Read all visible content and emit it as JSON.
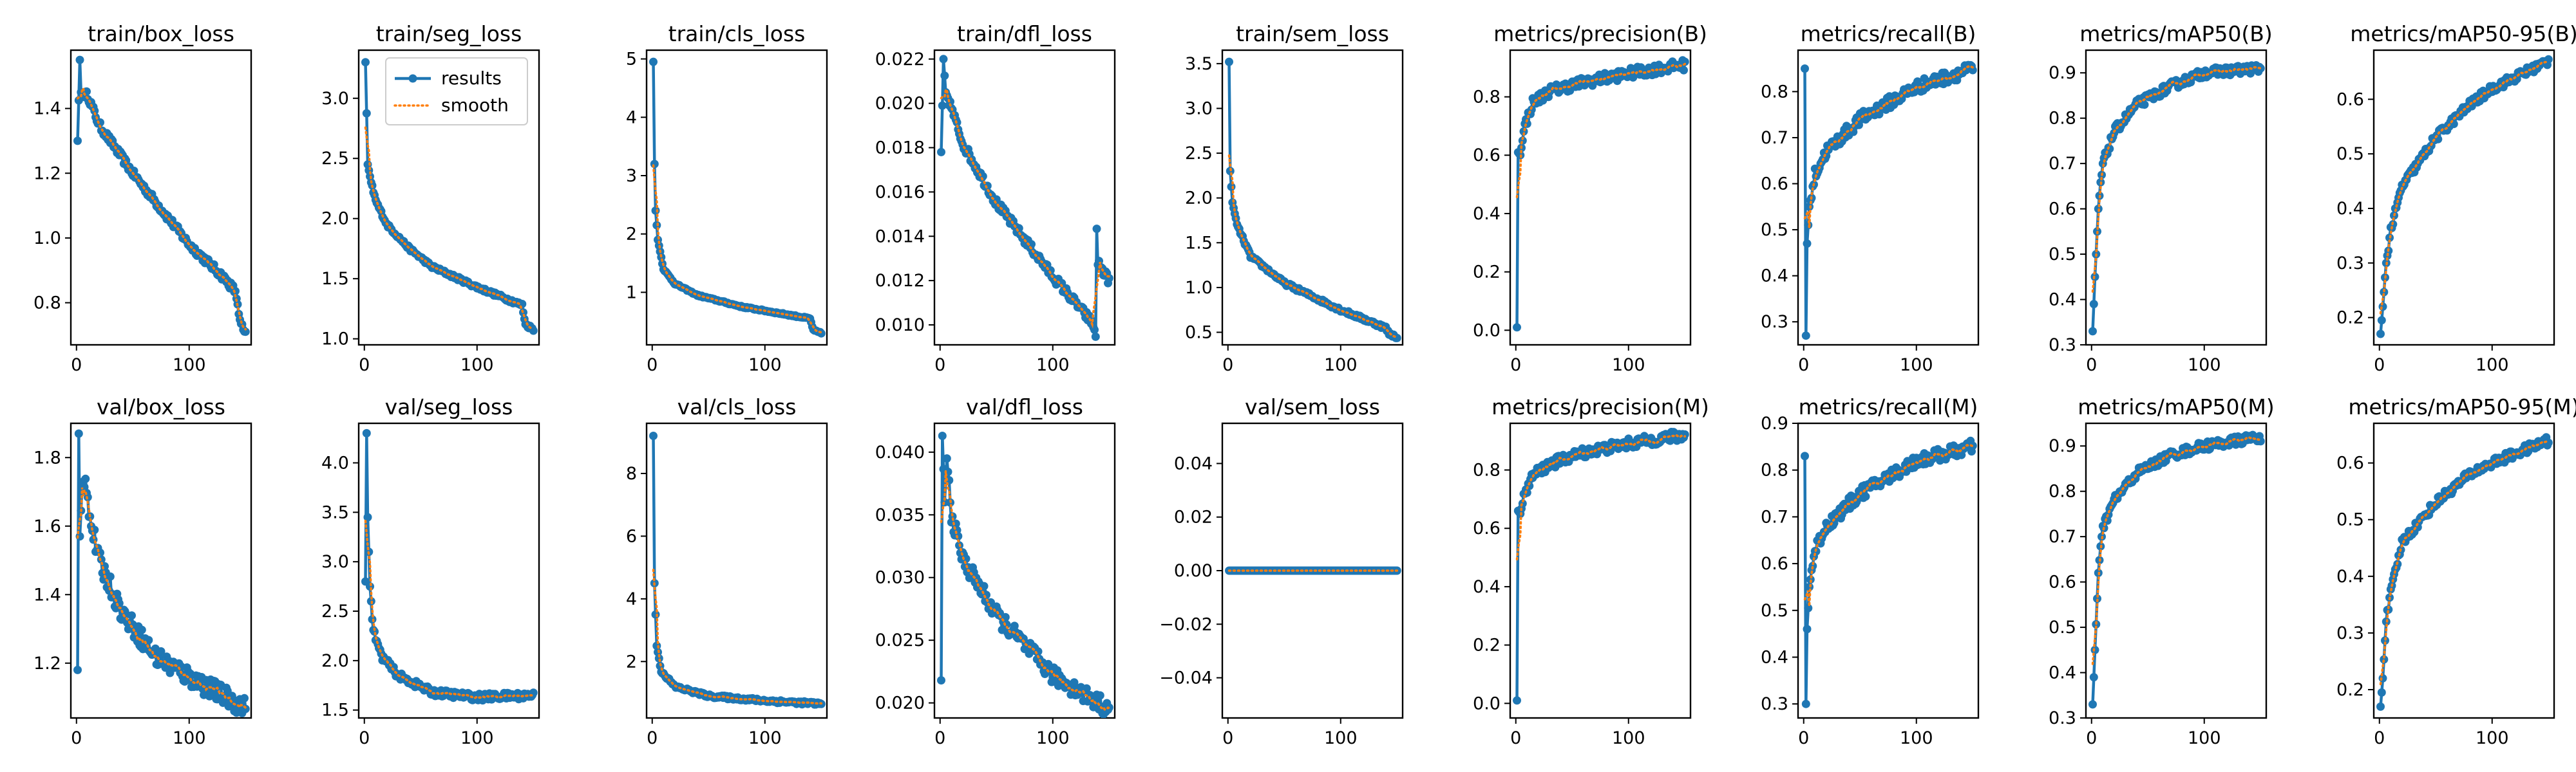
{
  "colors": {
    "results": "#1f77b4",
    "smooth": "#ff7f0e"
  },
  "legend": {
    "results_label": "results",
    "smooth_label": "smooth"
  },
  "chart_data": [
    {
      "type": "line",
      "title": "train/box_loss",
      "n": 150,
      "xlim": [
        -5,
        155
      ],
      "ylim": [
        0.67,
        1.58
      ],
      "xticks": [
        0,
        100
      ],
      "yticks": [
        0.8,
        1.0,
        1.2,
        1.4
      ],
      "yformat": 1,
      "anchors": [
        [
          1,
          1.3
        ],
        [
          3,
          1.55
        ],
        [
          4,
          1.45
        ],
        [
          10,
          1.44
        ],
        [
          20,
          1.35
        ],
        [
          50,
          1.2
        ],
        [
          100,
          0.98
        ],
        [
          130,
          0.88
        ],
        [
          140,
          0.84
        ],
        [
          143,
          0.8
        ],
        [
          145,
          0.74
        ],
        [
          150,
          0.7
        ]
      ],
      "noise": 0.012
    },
    {
      "type": "line",
      "title": "train/seg_loss",
      "n": 150,
      "xlim": [
        -5,
        155
      ],
      "ylim": [
        0.95,
        3.4
      ],
      "xticks": [
        0,
        100
      ],
      "yticks": [
        1.0,
        1.5,
        2.0,
        2.5,
        3.0
      ],
      "yformat": 1,
      "anchors": [
        [
          1,
          3.3
        ],
        [
          3,
          2.45
        ],
        [
          6,
          2.3
        ],
        [
          10,
          2.15
        ],
        [
          20,
          1.95
        ],
        [
          40,
          1.75
        ],
        [
          60,
          1.6
        ],
        [
          100,
          1.43
        ],
        [
          140,
          1.28
        ],
        [
          143,
          1.12
        ],
        [
          150,
          1.08
        ]
      ],
      "noise": 0.015,
      "legend": true
    },
    {
      "type": "line",
      "title": "train/cls_loss",
      "n": 150,
      "xlim": [
        -5,
        155
      ],
      "ylim": [
        0.1,
        5.15
      ],
      "xticks": [
        0,
        100
      ],
      "yticks": [
        1,
        2,
        3,
        4,
        5
      ],
      "yformat": 0,
      "anchors": [
        [
          1,
          4.95
        ],
        [
          2,
          3.2
        ],
        [
          3,
          2.4
        ],
        [
          5,
          1.9
        ],
        [
          10,
          1.4
        ],
        [
          20,
          1.15
        ],
        [
          40,
          0.95
        ],
        [
          80,
          0.75
        ],
        [
          140,
          0.55
        ],
        [
          143,
          0.35
        ],
        [
          150,
          0.3
        ]
      ],
      "noise": 0.012
    },
    {
      "type": "line",
      "title": "train/dfl_loss",
      "n": 150,
      "xlim": [
        -5,
        155
      ],
      "ylim": [
        0.0091,
        0.0224
      ],
      "xticks": [
        0,
        100
      ],
      "yticks": [
        0.01,
        0.012,
        0.014,
        0.016,
        0.018,
        0.02,
        0.022
      ],
      "yformat": 3,
      "anchors": [
        [
          1,
          0.0178
        ],
        [
          3,
          0.022
        ],
        [
          5,
          0.0205
        ],
        [
          10,
          0.0198
        ],
        [
          20,
          0.0182
        ],
        [
          50,
          0.0155
        ],
        [
          100,
          0.0122
        ],
        [
          135,
          0.0101
        ],
        [
          138,
          0.0096
        ],
        [
          139,
          0.0142
        ],
        [
          140,
          0.0128
        ],
        [
          150,
          0.012
        ]
      ],
      "noise": 0.0002
    },
    {
      "type": "line",
      "title": "train/sem_loss",
      "n": 150,
      "xlim": [
        -5,
        155
      ],
      "ylim": [
        0.36,
        3.65
      ],
      "xticks": [
        0,
        100
      ],
      "yticks": [
        0.5,
        1.0,
        1.5,
        2.0,
        2.5,
        3.0,
        3.5
      ],
      "yformat": 1,
      "anchors": [
        [
          1,
          3.52
        ],
        [
          2,
          2.3
        ],
        [
          4,
          1.95
        ],
        [
          8,
          1.7
        ],
        [
          20,
          1.35
        ],
        [
          50,
          1.05
        ],
        [
          100,
          0.75
        ],
        [
          140,
          0.55
        ],
        [
          143,
          0.48
        ],
        [
          150,
          0.45
        ]
      ],
      "noise": 0.02
    },
    {
      "type": "line",
      "title": "metrics/precision(B)",
      "n": 150,
      "xlim": [
        -5,
        155
      ],
      "ylim": [
        -0.05,
        0.96
      ],
      "xticks": [
        0,
        100
      ],
      "yticks": [
        0.0,
        0.2,
        0.4,
        0.6,
        0.8
      ],
      "yformat": 1,
      "anchors": [
        [
          1,
          0.01
        ],
        [
          2,
          0.61
        ],
        [
          4,
          0.6
        ],
        [
          8,
          0.7
        ],
        [
          15,
          0.78
        ],
        [
          30,
          0.82
        ],
        [
          60,
          0.85
        ],
        [
          100,
          0.88
        ],
        [
          150,
          0.91
        ]
      ],
      "noise": 0.018
    },
    {
      "type": "line",
      "title": "metrics/recall(B)",
      "n": 150,
      "xlim": [
        -5,
        155
      ],
      "ylim": [
        0.25,
        0.89
      ],
      "xticks": [
        0,
        100
      ],
      "yticks": [
        0.3,
        0.4,
        0.5,
        0.6,
        0.7,
        0.8
      ],
      "yformat": 1,
      "anchors": [
        [
          1,
          0.85
        ],
        [
          2,
          0.27
        ],
        [
          3,
          0.47
        ],
        [
          5,
          0.55
        ],
        [
          10,
          0.62
        ],
        [
          20,
          0.67
        ],
        [
          50,
          0.74
        ],
        [
          100,
          0.81
        ],
        [
          150,
          0.85
        ]
      ],
      "noise": 0.014
    },
    {
      "type": "line",
      "title": "metrics/mAP50(B)",
      "n": 150,
      "xlim": [
        -5,
        155
      ],
      "ylim": [
        0.3,
        0.95
      ],
      "xticks": [
        0,
        100
      ],
      "yticks": [
        0.3,
        0.4,
        0.5,
        0.6,
        0.7,
        0.8,
        0.9
      ],
      "yformat": 1,
      "anchors": [
        [
          1,
          0.33
        ],
        [
          3,
          0.45
        ],
        [
          6,
          0.6
        ],
        [
          10,
          0.7
        ],
        [
          20,
          0.77
        ],
        [
          40,
          0.83
        ],
        [
          70,
          0.87
        ],
        [
          100,
          0.9
        ],
        [
          150,
          0.91
        ]
      ],
      "noise": 0.01
    },
    {
      "type": "line",
      "title": "metrics/mAP50-95(B)",
      "n": 150,
      "xlim": [
        -5,
        155
      ],
      "ylim": [
        0.15,
        0.69
      ],
      "xticks": [
        0,
        100
      ],
      "yticks": [
        0.2,
        0.3,
        0.4,
        0.5,
        0.6
      ],
      "yformat": 1,
      "anchors": [
        [
          1,
          0.17
        ],
        [
          3,
          0.22
        ],
        [
          6,
          0.3
        ],
        [
          10,
          0.36
        ],
        [
          20,
          0.44
        ],
        [
          50,
          0.53
        ],
        [
          80,
          0.59
        ],
        [
          100,
          0.62
        ],
        [
          150,
          0.67
        ]
      ],
      "noise": 0.008
    },
    {
      "type": "line",
      "title": "val/box_loss",
      "n": 150,
      "xlim": [
        -5,
        155
      ],
      "ylim": [
        1.04,
        1.9
      ],
      "xticks": [
        0,
        100
      ],
      "yticks": [
        1.2,
        1.4,
        1.6,
        1.8
      ],
      "yformat": 1,
      "anchors": [
        [
          1,
          1.18
        ],
        [
          2,
          1.87
        ],
        [
          3,
          1.57
        ],
        [
          5,
          1.72
        ],
        [
          8,
          1.75
        ],
        [
          12,
          1.62
        ],
        [
          20,
          1.5
        ],
        [
          40,
          1.35
        ],
        [
          70,
          1.22
        ],
        [
          100,
          1.16
        ],
        [
          150,
          1.07
        ]
      ],
      "noise": 0.03
    },
    {
      "type": "line",
      "title": "val/seg_loss",
      "n": 150,
      "xlim": [
        -5,
        155
      ],
      "ylim": [
        1.42,
        4.4
      ],
      "xticks": [
        0,
        100
      ],
      "yticks": [
        1.5,
        2.0,
        2.5,
        3.0,
        3.5,
        4.0
      ],
      "yformat": 1,
      "anchors": [
        [
          1,
          2.8
        ],
        [
          2,
          4.3
        ],
        [
          3,
          3.45
        ],
        [
          5,
          2.75
        ],
        [
          8,
          2.3
        ],
        [
          15,
          2.05
        ],
        [
          30,
          1.85
        ],
        [
          60,
          1.68
        ],
        [
          100,
          1.63
        ],
        [
          150,
          1.65
        ]
      ],
      "noise": 0.035
    },
    {
      "type": "line",
      "title": "val/cls_loss",
      "n": 150,
      "xlim": [
        -5,
        155
      ],
      "ylim": [
        0.2,
        9.6
      ],
      "xticks": [
        0,
        100
      ],
      "yticks": [
        2,
        4,
        6,
        8
      ],
      "yformat": 0,
      "anchors": [
        [
          1,
          9.2
        ],
        [
          2,
          4.5
        ],
        [
          4,
          2.5
        ],
        [
          8,
          1.7
        ],
        [
          20,
          1.2
        ],
        [
          50,
          0.9
        ],
        [
          100,
          0.75
        ],
        [
          150,
          0.65
        ]
      ],
      "noise": 0.05
    },
    {
      "type": "line",
      "title": "val/dfl_loss",
      "n": 150,
      "xlim": [
        -5,
        155
      ],
      "ylim": [
        0.0188,
        0.0423
      ],
      "xticks": [
        0,
        100
      ],
      "yticks": [
        0.02,
        0.025,
        0.03,
        0.035,
        0.04
      ],
      "yformat": 3,
      "anchors": [
        [
          1,
          0.0218
        ],
        [
          2,
          0.0413
        ],
        [
          4,
          0.036
        ],
        [
          6,
          0.0395
        ],
        [
          10,
          0.035
        ],
        [
          20,
          0.0315
        ],
        [
          50,
          0.027
        ],
        [
          100,
          0.0222
        ],
        [
          150,
          0.0195
        ]
      ],
      "noise": 0.0007
    },
    {
      "type": "line",
      "title": "val/sem_loss",
      "n": 150,
      "xlim": [
        -5,
        155
      ],
      "ylim": [
        -0.055,
        0.055
      ],
      "xticks": [
        0,
        100
      ],
      "yticks": [
        -0.04,
        -0.02,
        0.0,
        0.02,
        0.04
      ],
      "yformat": 2,
      "anchors": [
        [
          1,
          0.0
        ],
        [
          150,
          0.0
        ]
      ],
      "noise": 0.0
    },
    {
      "type": "line",
      "title": "metrics/precision(M)",
      "n": 150,
      "xlim": [
        -5,
        155
      ],
      "ylim": [
        -0.05,
        0.96
      ],
      "xticks": [
        0,
        100
      ],
      "yticks": [
        0.0,
        0.2,
        0.4,
        0.6,
        0.8
      ],
      "yformat": 1,
      "anchors": [
        [
          1,
          0.01
        ],
        [
          2,
          0.66
        ],
        [
          4,
          0.65
        ],
        [
          8,
          0.72
        ],
        [
          15,
          0.78
        ],
        [
          30,
          0.82
        ],
        [
          60,
          0.86
        ],
        [
          100,
          0.89
        ],
        [
          150,
          0.92
        ]
      ],
      "noise": 0.018
    },
    {
      "type": "line",
      "title": "metrics/recall(M)",
      "n": 150,
      "xlim": [
        -5,
        155
      ],
      "ylim": [
        0.27,
        0.9
      ],
      "xticks": [
        0,
        100
      ],
      "yticks": [
        0.3,
        0.4,
        0.5,
        0.6,
        0.7,
        0.8,
        0.9
      ],
      "yformat": 1,
      "anchors": [
        [
          1,
          0.83
        ],
        [
          2,
          0.3
        ],
        [
          3,
          0.46
        ],
        [
          5,
          0.55
        ],
        [
          10,
          0.63
        ],
        [
          20,
          0.68
        ],
        [
          50,
          0.75
        ],
        [
          100,
          0.82
        ],
        [
          150,
          0.85
        ]
      ],
      "noise": 0.014
    },
    {
      "type": "line",
      "title": "metrics/mAP50(M)",
      "n": 150,
      "xlim": [
        -5,
        155
      ],
      "ylim": [
        0.3,
        0.95
      ],
      "xticks": [
        0,
        100
      ],
      "yticks": [
        0.3,
        0.4,
        0.5,
        0.6,
        0.7,
        0.8,
        0.9
      ],
      "yformat": 1,
      "anchors": [
        [
          1,
          0.33
        ],
        [
          3,
          0.45
        ],
        [
          6,
          0.62
        ],
        [
          10,
          0.72
        ],
        [
          20,
          0.78
        ],
        [
          40,
          0.84
        ],
        [
          70,
          0.88
        ],
        [
          100,
          0.9
        ],
        [
          150,
          0.92
        ]
      ],
      "noise": 0.01
    },
    {
      "type": "line",
      "title": "metrics/mAP50-95(M)",
      "n": 150,
      "xlim": [
        -5,
        155
      ],
      "ylim": [
        0.15,
        0.67
      ],
      "xticks": [
        0,
        100
      ],
      "yticks": [
        0.2,
        0.3,
        0.4,
        0.5,
        0.6
      ],
      "yformat": 1,
      "anchors": [
        [
          1,
          0.17
        ],
        [
          3,
          0.22
        ],
        [
          6,
          0.32
        ],
        [
          10,
          0.37
        ],
        [
          20,
          0.46
        ],
        [
          50,
          0.53
        ],
        [
          80,
          0.58
        ],
        [
          100,
          0.6
        ],
        [
          150,
          0.64
        ]
      ],
      "noise": 0.008
    }
  ]
}
